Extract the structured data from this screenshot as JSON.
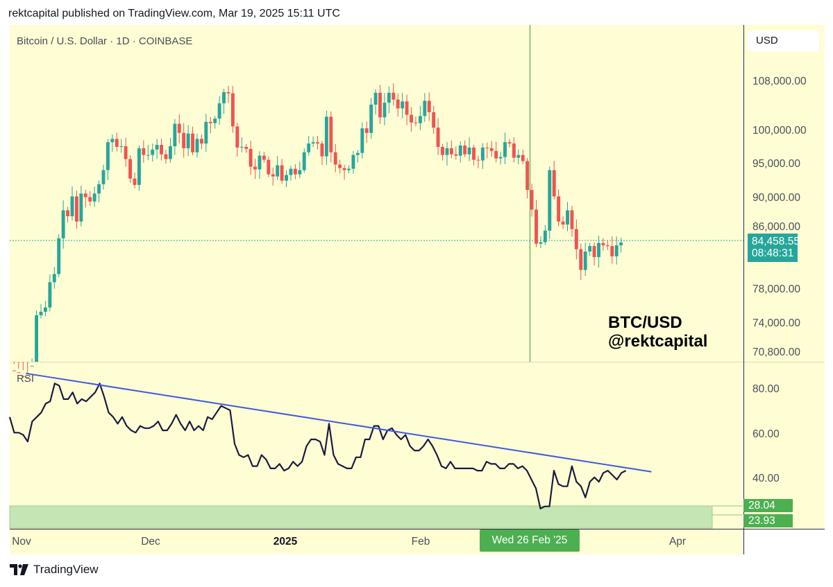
{
  "header": "rektcapital published on TradingView.com, Mar 19, 2025 15:11 UTC",
  "symbol_label": "Bitcoin / U.S. Dollar · 1D · COINBASE",
  "currency": "USD",
  "watermark": {
    "line1": "BTC/USD",
    "line2": "@rektcapital"
  },
  "last_price": {
    "price": "84,458.55",
    "countdown": "08:48:31"
  },
  "cursor_date": "Wed 26 Feb '25",
  "rsi_label": "RSI",
  "rsi_badges": [
    "28.04",
    "23.93"
  ],
  "logo_text": "TradingView",
  "colors": {
    "background": "#fffdd4",
    "up": "#26a69a",
    "down": "#ef5350",
    "rsi_line": "#1a1a40",
    "trendline": "#3d5be0",
    "cursor": "#4caf50",
    "rsi_zone": "#c4e5b4"
  },
  "chart_data": [
    {
      "type": "candlestick",
      "title": "Bitcoin / U.S. Dollar · 1D · COINBASE",
      "y_axis_labels": [
        "108,000.00",
        "100,000.00",
        "95,000.00",
        "90,000.00",
        "86,000.00",
        "78,000.00",
        "74,000.00",
        "70,800.00"
      ],
      "y_ticks": [
        108000,
        100000,
        95000,
        90000,
        86000,
        78000,
        74000,
        70800
      ],
      "x_axis_labels": [
        "Nov",
        "Dec",
        "2025",
        "Feb",
        "Apr"
      ],
      "x_ticks": [
        "2024-11-01",
        "2024-12-01",
        "2025-01-01",
        "2025-02-01",
        "2025-04-01"
      ],
      "date_range": [
        "2024-11-01",
        "2025-04-05"
      ],
      "x_end": "2025-03-19",
      "cursor": "2025-02-26",
      "last_price": 84458.55,
      "close": [
        69500,
        69300,
        68900,
        68800,
        68600,
        70000,
        75600,
        76000,
        76500,
        79500,
        80500,
        85000,
        88700,
        87900,
        90600,
        87200,
        91000,
        90500,
        89900,
        91000,
        92300,
        94300,
        98400,
        98900,
        97700,
        97800,
        95900,
        93100,
        92200,
        97500,
        96500,
        96500,
        97300,
        98000,
        96600,
        95900,
        97800,
        101200,
        99800,
        97500,
        99700,
        96900,
        98900,
        98200,
        101500,
        101300,
        102000,
        104400,
        106200,
        106000,
        100800,
        97600,
        97700,
        97400,
        94800,
        94400,
        96400,
        95800,
        93700,
        93400,
        95000,
        92800,
        93600,
        94500,
        93700,
        94300,
        96900,
        98200,
        98400,
        98200,
        96300,
        102300,
        96900,
        95100,
        94600,
        94300,
        94500,
        96500,
        96800,
        100500,
        99800,
        104200,
        106100,
        102200,
        104500,
        106100,
        105000,
        103600,
        104700,
        102600,
        101400,
        101300,
        102400,
        104800,
        103000,
        100600,
        97700,
        96500,
        97500,
        96600,
        96400,
        97900,
        96600,
        97600,
        95800,
        95700,
        97600,
        97500,
        97100,
        96000,
        96200,
        98400,
        98200,
        96100,
        96500,
        95600,
        91500,
        88800,
        84300,
        84500,
        86000,
        94300,
        90600,
        87200,
        86800,
        88700,
        86200,
        83600,
        81000,
        83300,
        84000,
        82600,
        84400,
        84100,
        84000,
        82700,
        84100,
        84458
      ]
    },
    {
      "type": "line",
      "title": "RSI",
      "y_axis_labels": [
        "80.00",
        "60.00",
        "40.00"
      ],
      "y_ticks": [
        80,
        60,
        40
      ],
      "y_range": [
        20.6,
        92.8
      ],
      "oversold_zone": [
        23.93,
        28.04
      ],
      "trendline": {
        "start": [
          "2024-11-02",
          87.5
        ],
        "end": [
          "2025-03-26",
          43.5
        ]
      },
      "values": [
        68,
        61,
        61,
        60,
        57,
        66,
        68,
        70,
        74,
        75,
        83,
        82,
        76,
        76,
        79,
        74,
        76,
        75,
        77,
        79,
        83,
        77,
        70,
        68,
        65,
        68,
        64,
        62,
        61,
        64,
        63,
        63,
        64,
        66,
        62,
        62,
        65,
        69,
        65,
        62,
        66,
        62,
        64,
        62,
        68,
        67,
        70,
        73,
        72,
        71,
        56,
        51,
        50,
        51,
        46,
        46,
        51,
        49,
        45,
        45,
        47,
        44,
        45,
        48,
        46,
        48,
        55,
        58,
        58,
        57,
        51,
        65,
        51,
        47,
        46,
        45,
        45,
        50,
        50,
        58,
        58,
        64,
        64,
        58,
        62,
        63,
        60,
        58,
        60,
        55,
        53,
        53,
        55,
        58,
        55,
        51,
        46,
        45,
        48,
        45,
        45,
        45,
        45,
        45,
        44,
        44,
        48,
        47,
        47,
        45,
        45,
        47,
        47,
        45,
        46,
        44,
        40,
        36,
        27,
        28,
        28,
        44,
        38,
        37,
        37,
        46,
        39,
        37,
        32,
        39,
        41,
        39,
        43,
        44,
        42,
        40,
        43,
        44
      ]
    }
  ]
}
